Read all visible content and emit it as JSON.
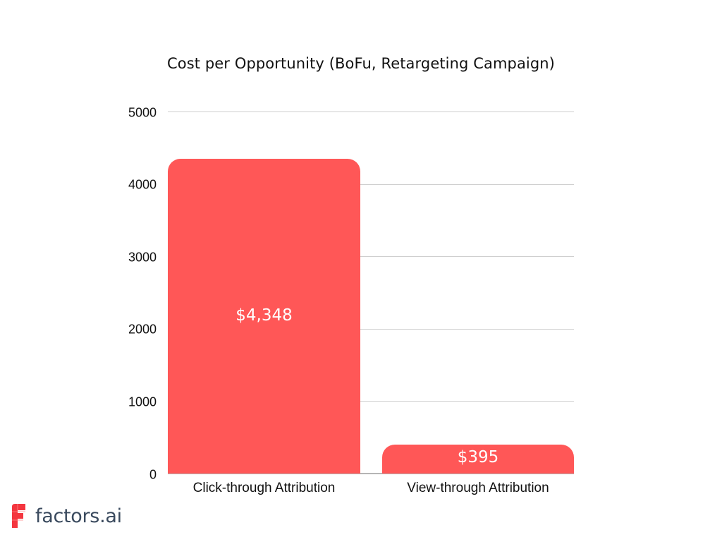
{
  "chart_data": {
    "type": "bar",
    "title": "Cost per Opportunity (BoFu, Retargeting Campaign)",
    "categories": [
      "Click-through Attribution",
      "View-through Attribution"
    ],
    "values": [
      4348,
      395
    ],
    "value_labels": [
      "$4,348",
      "$395"
    ],
    "xlabel": "",
    "ylabel": "",
    "ylim": [
      0,
      5000
    ],
    "yticks": [
      0,
      1000,
      2000,
      3000,
      4000,
      5000
    ],
    "grid": true,
    "legend": null,
    "bar_color": "#ff5757"
  },
  "yticks_labels": [
    "5000",
    "4000",
    "3000",
    "2000",
    "1000",
    "0"
  ],
  "brand": {
    "name": "factors.ai",
    "color": "#f4363f",
    "text_color": "#3a4a5e"
  }
}
